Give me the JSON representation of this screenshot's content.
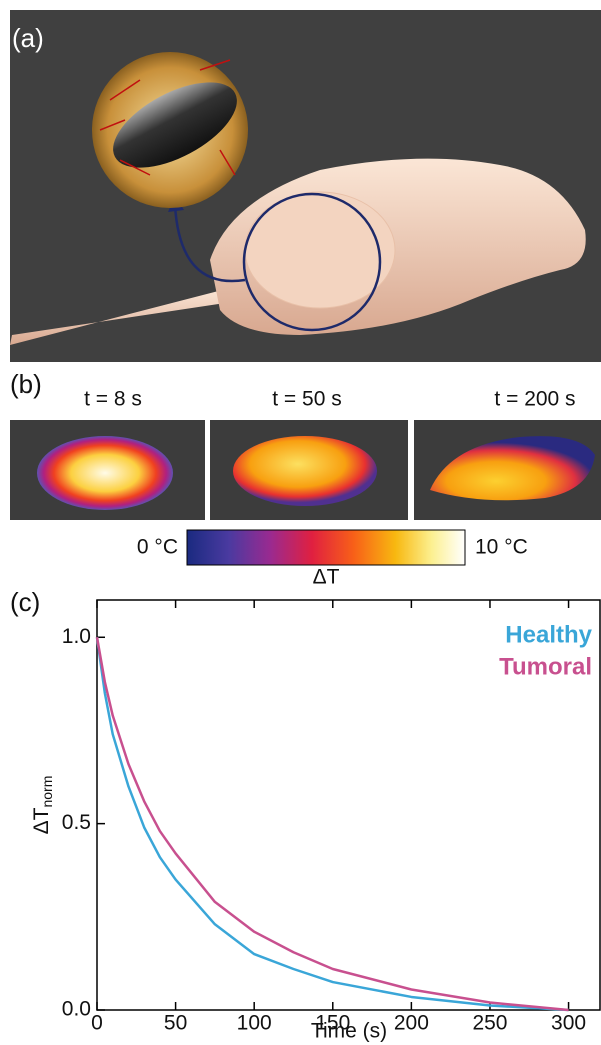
{
  "panels": {
    "a": {
      "label": "(a)"
    },
    "b": {
      "label": "(b)",
      "times": [
        "t = 8 s",
        "t = 50 s",
        "t = 200 s"
      ],
      "colorbar": {
        "min_label": "0 °C",
        "max_label": "10 °C",
        "label": "ΔT"
      }
    },
    "c": {
      "label": "(c)"
    }
  },
  "chart_data": {
    "type": "line",
    "x_label": "Time (s)",
    "y_label": "ΔT",
    "y_label_subscript": "norm",
    "x": [
      0,
      5,
      10,
      20,
      30,
      40,
      50,
      75,
      100,
      125,
      150,
      200,
      250,
      300
    ],
    "series": [
      {
        "name": "Healthy",
        "color": "#3aa6d8",
        "values": [
          1.0,
          0.85,
          0.74,
          0.6,
          0.49,
          0.41,
          0.35,
          0.23,
          0.15,
          0.11,
          0.075,
          0.035,
          0.012,
          0.0
        ]
      },
      {
        "name": "Tumoral",
        "color": "#c8508f",
        "values": [
          1.0,
          0.88,
          0.79,
          0.66,
          0.56,
          0.48,
          0.42,
          0.29,
          0.21,
          0.155,
          0.11,
          0.055,
          0.02,
          0.0
        ]
      }
    ],
    "xlim": [
      0,
      320
    ],
    "ylim": [
      0,
      1.1
    ],
    "xticks": [
      0,
      50,
      100,
      150,
      200,
      250,
      300
    ],
    "yticks": [
      {
        "value": 0,
        "label": "0.0"
      },
      {
        "value": 0.5,
        "label": "0.5"
      },
      {
        "value": 1,
        "label": "1.0"
      }
    ],
    "legend": "upper right"
  }
}
